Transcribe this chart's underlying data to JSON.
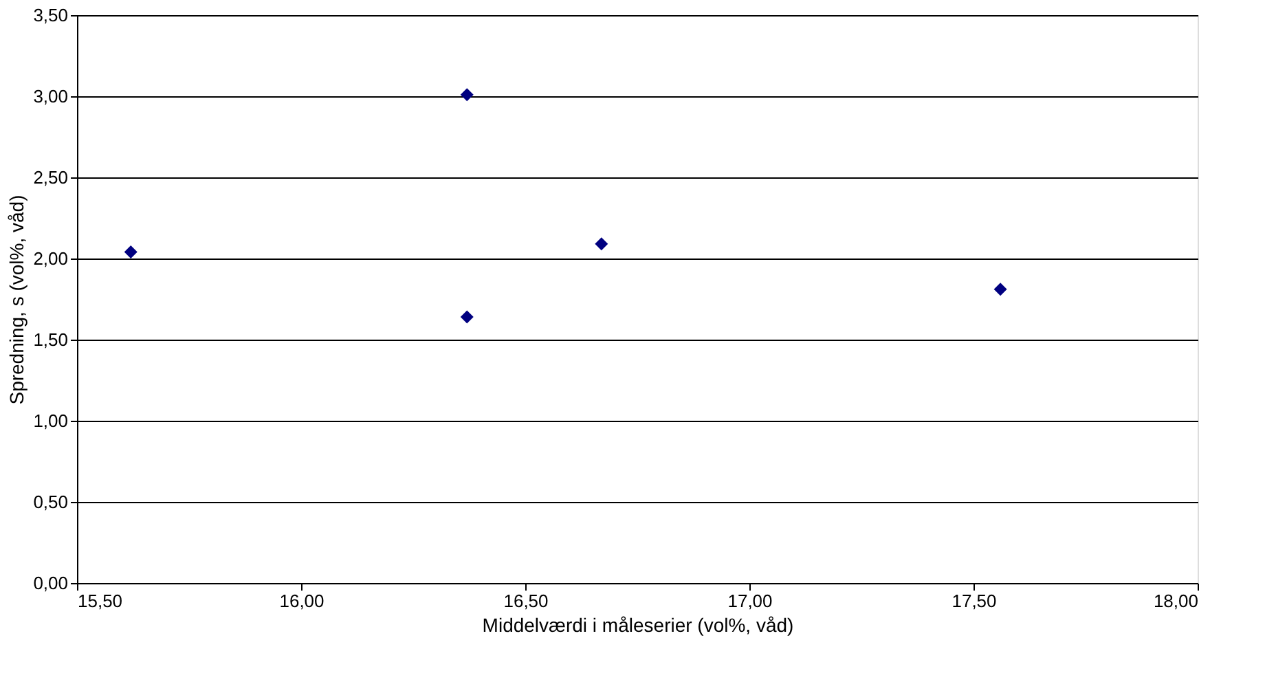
{
  "chart_data": {
    "type": "scatter",
    "xlabel": "Middelværdi i måleserier (vol%, våd)",
    "ylabel": "Spredning, s (vol%, våd)",
    "x": [
      15.62,
      16.37,
      16.37,
      16.67,
      17.56
    ],
    "series": [
      {
        "color": "#000080",
        "values": [
          2.04,
          3.01,
          1.64,
          2.09,
          1.81
        ]
      }
    ],
    "xlim": [
      15.5,
      18.0
    ],
    "xticks": [
      {
        "value": 15.5,
        "label": "15,50"
      },
      {
        "value": 16.0,
        "label": "16,00"
      },
      {
        "value": 16.5,
        "label": "16,50"
      },
      {
        "value": 17.0,
        "label": "17,00"
      },
      {
        "value": 17.5,
        "label": "17,50"
      },
      {
        "value": 18.0,
        "label": "18,00"
      }
    ],
    "ylim": [
      0,
      3.5
    ],
    "yticks": [
      {
        "value": 0,
        "label": "0,00"
      },
      {
        "value": 0.5,
        "label": "0,50"
      },
      {
        "value": 1.0,
        "label": "1,00"
      },
      {
        "value": 1.5,
        "label": "1,50"
      },
      {
        "value": 2.0,
        "label": "2,00"
      },
      {
        "value": 2.5,
        "label": "2,50"
      },
      {
        "value": 3.0,
        "label": "3,00"
      },
      {
        "value": 3.5,
        "label": "3,50"
      }
    ],
    "grid": "y",
    "marker": "diamond"
  }
}
